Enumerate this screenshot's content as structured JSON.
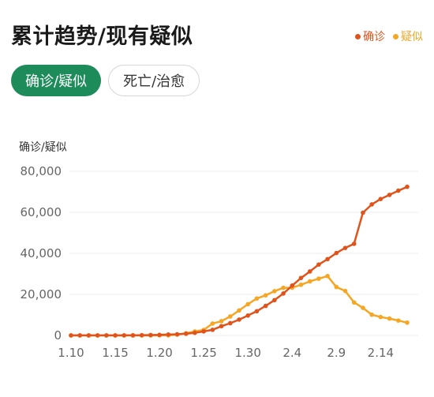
{
  "title": "累计趋势/现有疑似",
  "legend": [
    {
      "label": "确诊",
      "color": "#e0541b"
    },
    {
      "label": "疑似",
      "color": "#f5a623"
    }
  ],
  "tabs": [
    {
      "label": "确诊/疑似",
      "active": true
    },
    {
      "label": "死亡/治愈",
      "active": false
    }
  ],
  "chart_data": {
    "type": "line",
    "ylabel": "确诊/疑似",
    "ylim": [
      0,
      80000
    ],
    "yticks": [
      {
        "value": 0,
        "label": "0"
      },
      {
        "value": 20000,
        "label": "20,000"
      },
      {
        "value": 40000,
        "label": "40,000"
      },
      {
        "value": 60000,
        "label": "60,000"
      },
      {
        "value": 80000,
        "label": "80,000"
      }
    ],
    "x": [
      "1.10",
      "1.11",
      "1.12",
      "1.13",
      "1.14",
      "1.15",
      "1.16",
      "1.17",
      "1.18",
      "1.19",
      "1.20",
      "1.21",
      "1.22",
      "1.23",
      "1.24",
      "1.25",
      "1.26",
      "1.27",
      "1.28",
      "1.29",
      "1.30",
      "1.31",
      "2.1",
      "2.2",
      "2.3",
      "2.4",
      "2.5",
      "2.6",
      "2.7",
      "2.8",
      "2.9",
      "2.10",
      "2.11",
      "2.12",
      "2.13",
      "2.14",
      "2.15",
      "2.16",
      "2.17"
    ],
    "xticks": [
      "1.10",
      "1.15",
      "1.20",
      "1.25",
      "1.30",
      "2.4",
      "2.9",
      "2.14"
    ],
    "grid": true,
    "series": [
      {
        "name": "确诊",
        "color": "#e0541b",
        "values": [
          41,
          41,
          41,
          41,
          41,
          41,
          45,
          62,
          121,
          198,
          291,
          440,
          571,
          830,
          1287,
          1975,
          2744,
          4515,
          5974,
          7711,
          9692,
          11791,
          14380,
          17205,
          20438,
          24324,
          28018,
          31161,
          34546,
          37198,
          40171,
          42638,
          44653,
          59804,
          63851,
          66492,
          68500,
          70548,
          72436
        ]
      },
      {
        "name": "疑似",
        "color": "#f5a623",
        "values": [
          0,
          0,
          0,
          0,
          0,
          0,
          0,
          0,
          0,
          0,
          54,
          37,
          393,
          1072,
          1965,
          2684,
          5794,
          6973,
          9239,
          12167,
          15238,
          17988,
          19544,
          21558,
          23214,
          23260,
          24702,
          26359,
          27657,
          28942,
          23589,
          21675,
          16067,
          13435,
          10109,
          8969,
          8228,
          7264,
          6242
        ]
      }
    ]
  }
}
